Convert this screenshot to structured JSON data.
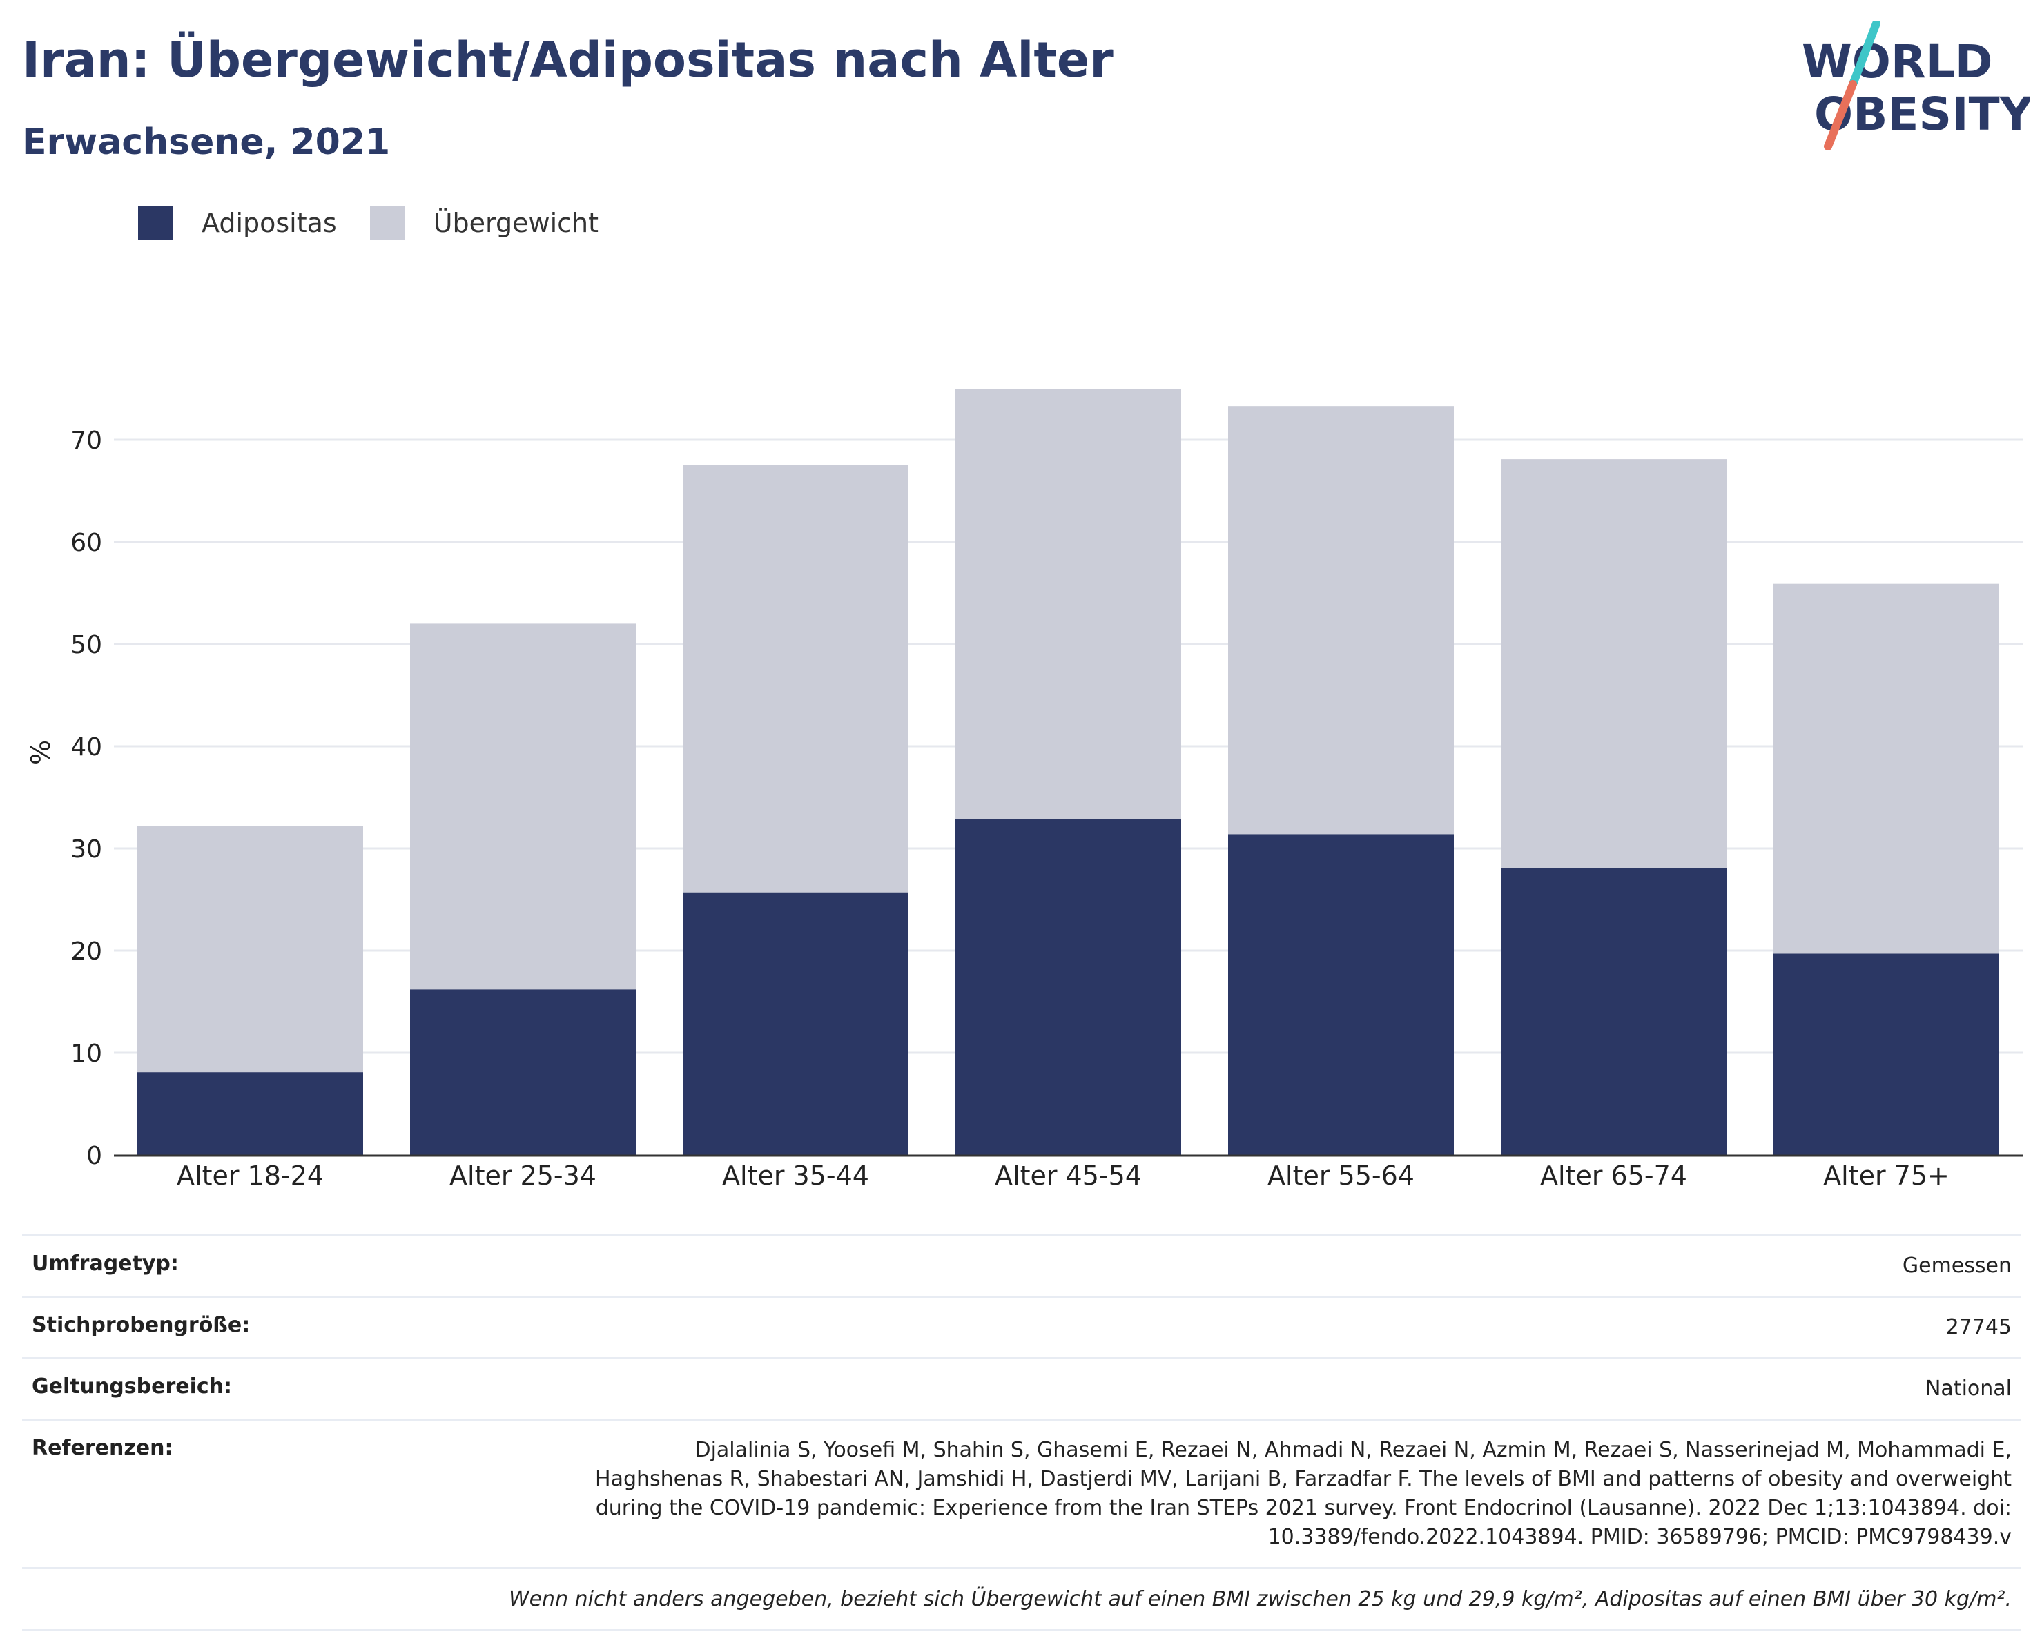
{
  "header": {
    "title": "Iran: Übergewicht/Adipositas nach Alter",
    "subtitle": "Erwachsene, 2021"
  },
  "logo": {
    "line1": "WORLD",
    "line2": "OBESITY",
    "colors": {
      "text": "#2b3a67",
      "slash_top": "#3ec6c8",
      "slash_bottom": "#e8705a"
    }
  },
  "colors": {
    "adipositas": "#2b3764",
    "uebergewicht": "#cbcdd8",
    "grid": "#e6e8ee",
    "axis": "#333333"
  },
  "chart_data": {
    "type": "bar",
    "stacked": true,
    "categories": [
      "Alter 18-24",
      "Alter 25-34",
      "Alter 35-44",
      "Alter 45-54",
      "Alter 55-64",
      "Alter 65-74",
      "Alter 75+"
    ],
    "series": [
      {
        "name": "Adipositas",
        "values": [
          8.1,
          16.2,
          25.7,
          32.9,
          31.4,
          28.1,
          19.7
        ]
      },
      {
        "name": "Übergewicht",
        "values": [
          24.1,
          35.8,
          41.8,
          42.1,
          41.9,
          40.0,
          36.2
        ]
      }
    ],
    "totals": [
      32.2,
      52.0,
      67.5,
      75.0,
      73.3,
      68.1,
      55.9
    ],
    "ylabel": "%",
    "yticks": [
      0,
      10,
      20,
      30,
      40,
      50,
      60,
      70
    ],
    "ylim": [
      0,
      80
    ],
    "grid": true,
    "legend_position": "top-left"
  },
  "meta": {
    "rows": [
      {
        "key": "Umfragetyp:",
        "value": "Gemessen"
      },
      {
        "key": "Stichprobengröße:",
        "value": "27745"
      },
      {
        "key": "Geltungsbereich:",
        "value": "National"
      },
      {
        "key": "Referenzen:",
        "value": "Djalalinia S, Yoosefi M, Shahin S, Ghasemi E, Rezaei N, Ahmadi N, Rezaei N, Azmin M, Rezaei S, Nasserinejad M, Mohammadi E, Haghshenas R, Shabestari AN, Jamshidi H, Dastjerdi MV, Larijani B, Farzadfar F. The levels of BMI and patterns of obesity and overweight during the COVID-19 pandemic: Experience from the Iran STEPs 2021 survey. Front Endocrinol (Lausanne). 2022 Dec 1;13:1043894. doi: 10.3389/fendo.2022.1043894. PMID: 36589796; PMCID: PMC9798439.v"
      }
    ],
    "note": "Wenn nicht anders angegeben, bezieht sich Übergewicht auf einen BMI zwischen 25 kg und 29,9 kg/m², Adipositas auf einen BMI über 30 kg/m²."
  }
}
